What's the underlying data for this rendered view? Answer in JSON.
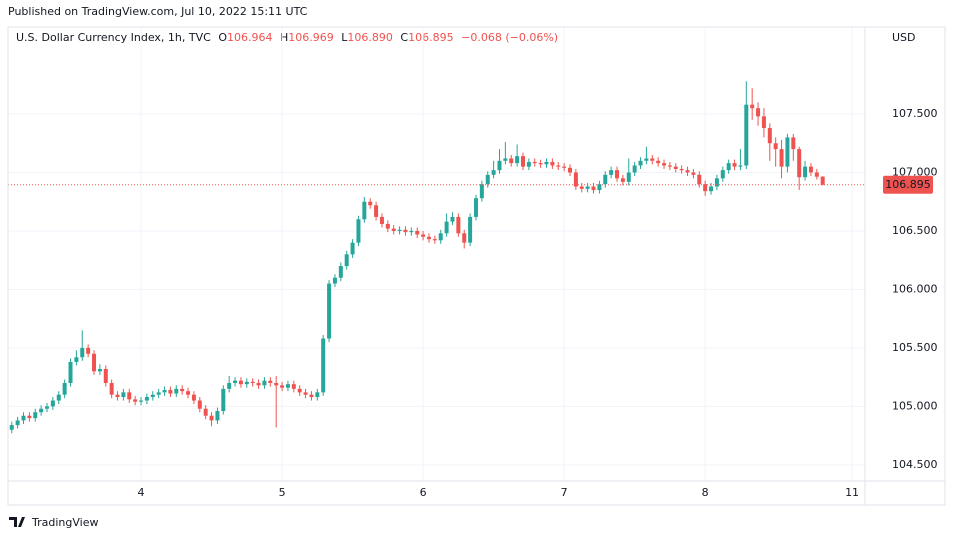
{
  "chart_data": {
    "type": "candlestick",
    "published": "Published on TradingView.com, Jul 10, 2022 15:11 UTC",
    "symbol": "U.S. Dollar Currency Index, 1h, TVC",
    "ohlc_letters": [
      "O",
      "H",
      "L",
      "C"
    ],
    "last_labels": [
      "106.964",
      "106.969",
      "106.890",
      "106.895"
    ],
    "change": "−0.068 (−0.06%)",
    "currency": "USD",
    "brand": "TradingView",
    "up_color": "#26a69a",
    "down_color": "#ef5350",
    "grid": true,
    "xlim": [
      -2,
      145.2
    ],
    "xticks": [
      {
        "value": 22,
        "label": "4"
      },
      {
        "value": 46,
        "label": "5"
      },
      {
        "value": 70,
        "label": "6"
      },
      {
        "value": 94,
        "label": "7"
      },
      {
        "value": 118,
        "label": "8"
      },
      {
        "value": 143,
        "label": "11"
      }
    ],
    "ylim": [
      104.362,
      108.244
    ],
    "yticks": [
      {
        "value": 104.5,
        "label": "104.500"
      },
      {
        "value": 105,
        "label": "105.000"
      },
      {
        "value": 105.5,
        "label": "105.500"
      },
      {
        "value": 106,
        "label": "106.000"
      },
      {
        "value": 106.5,
        "label": "106.500"
      },
      {
        "value": 107,
        "label": "107.000"
      },
      {
        "value": 107.5,
        "label": "107.500"
      }
    ],
    "open": [
      104.8,
      104.84,
      104.88,
      104.92,
      104.9,
      104.95,
      104.98,
      105.0,
      105.05,
      105.1,
      105.2,
      105.38,
      105.42,
      105.5,
      105.45,
      105.3,
      105.32,
      105.2,
      105.1,
      105.08,
      105.12,
      105.06,
      105.04,
      105.05,
      105.08,
      105.1,
      105.12,
      105.14,
      105.11,
      105.15,
      105.13,
      105.1,
      105.05,
      104.98,
      104.92,
      104.88,
      104.96,
      105.15,
      105.2,
      105.22,
      105.19,
      105.21,
      105.2,
      105.18,
      105.22,
      105.2,
      105.18,
      105.16,
      105.19,
      105.15,
      105.12,
      105.1,
      105.08,
      105.12,
      105.58,
      106.05,
      106.1,
      106.2,
      106.3,
      106.4,
      106.6,
      106.75,
      106.72,
      106.62,
      106.56,
      106.52,
      106.5,
      106.51,
      106.49,
      106.5,
      106.47,
      106.45,
      106.43,
      106.42,
      106.48,
      106.58,
      106.62,
      106.48,
      106.4,
      106.62,
      106.78,
      106.9,
      106.98,
      107.02,
      107.1,
      107.12,
      107.08,
      107.14,
      107.05,
      107.09,
      107.08,
      107.07,
      107.09,
      107.06,
      107.05,
      107.04,
      107.0,
      106.88,
      106.86,
      106.88,
      106.85,
      106.9,
      106.98,
      107.02,
      106.95,
      106.92,
      107.0,
      107.06,
      107.1,
      107.12,
      107.1,
      107.08,
      107.06,
      107.05,
      107.03,
      107.02,
      107.0,
      106.98,
      106.9,
      106.84,
      106.88,
      106.95,
      107.02,
      107.08,
      107.05,
      107.06,
      107.58,
      107.55,
      107.48,
      107.38,
      107.25,
      107.2,
      107.05,
      107.3,
      107.2,
      106.96,
      107.05,
      107.0,
      106.964
    ],
    "high": [
      104.87,
      104.91,
      104.95,
      104.95,
      104.98,
      105.01,
      105.03,
      105.08,
      105.13,
      105.23,
      105.41,
      105.48,
      105.65,
      105.53,
      105.48,
      105.36,
      105.35,
      105.23,
      105.13,
      105.15,
      105.15,
      105.09,
      105.08,
      105.11,
      105.13,
      105.15,
      105.17,
      105.17,
      105.18,
      105.18,
      105.16,
      105.13,
      105.08,
      105.01,
      104.95,
      104.99,
      105.18,
      105.26,
      105.25,
      105.25,
      105.24,
      105.24,
      105.23,
      105.25,
      105.25,
      105.26,
      105.21,
      105.22,
      105.22,
      105.18,
      105.15,
      105.13,
      105.15,
      105.61,
      106.08,
      106.13,
      106.23,
      106.33,
      106.43,
      106.63,
      106.79,
      106.78,
      106.75,
      106.65,
      106.59,
      106.55,
      106.54,
      106.54,
      106.53,
      106.53,
      106.5,
      106.48,
      106.46,
      106.51,
      106.65,
      106.66,
      106.65,
      106.51,
      106.65,
      106.81,
      106.93,
      107.01,
      107.1,
      107.2,
      107.26,
      107.15,
      107.24,
      107.17,
      107.12,
      107.12,
      107.11,
      107.12,
      107.12,
      107.09,
      107.08,
      107.07,
      107.03,
      106.91,
      106.91,
      106.91,
      106.93,
      107.01,
      107.05,
      107.05,
      106.98,
      107.12,
      107.09,
      107.13,
      107.22,
      107.15,
      107.13,
      107.11,
      107.09,
      107.08,
      107.06,
      107.05,
      107.03,
      107.01,
      106.93,
      106.91,
      106.98,
      107.05,
      107.11,
      107.11,
      107.2,
      107.78,
      107.72,
      107.6,
      107.55,
      107.42,
      107.3,
      107.28,
      107.33,
      107.33,
      107.22,
      107.1,
      107.08,
      107.03,
      106.969
    ],
    "low": [
      104.77,
      104.81,
      104.85,
      104.87,
      104.87,
      104.92,
      104.95,
      104.97,
      105.02,
      105.07,
      105.17,
      105.35,
      105.39,
      105.42,
      105.27,
      105.27,
      105.17,
      105.07,
      105.05,
      105.05,
      105.03,
      105.01,
      105.01,
      105.02,
      105.05,
      105.07,
      105.09,
      105.08,
      105.08,
      105.1,
      105.07,
      105.02,
      104.95,
      104.89,
      104.83,
      104.85,
      104.93,
      105.12,
      105.17,
      105.16,
      105.16,
      105.17,
      105.15,
      105.15,
      105.17,
      104.82,
      105.13,
      105.13,
      105.12,
      105.09,
      105.07,
      105.05,
      105.05,
      105.09,
      105.55,
      106.02,
      106.07,
      106.17,
      106.27,
      106.37,
      106.57,
      106.69,
      106.59,
      106.53,
      106.49,
      106.47,
      106.47,
      106.46,
      106.46,
      106.44,
      106.42,
      106.4,
      106.39,
      106.39,
      106.45,
      106.55,
      106.45,
      106.35,
      106.37,
      106.59,
      106.75,
      106.87,
      106.95,
      106.99,
      107.07,
      107.05,
      107.05,
      107.02,
      107.02,
      107.05,
      107.04,
      107.04,
      107.03,
      107.02,
      107.01,
      106.97,
      106.85,
      106.83,
      106.83,
      106.82,
      106.82,
      106.87,
      106.95,
      106.92,
      106.89,
      106.89,
      106.97,
      107.03,
      107.07,
      107.07,
      107.05,
      107.03,
      107.02,
      107.0,
      106.99,
      106.97,
      106.95,
      106.87,
      106.8,
      106.81,
      106.85,
      106.92,
      106.99,
      107.02,
      107.02,
      107.03,
      107.45,
      107.4,
      107.3,
      107.1,
      107.05,
      106.95,
      107.0,
      107.1,
      106.85,
      106.93,
      106.97,
      106.94,
      106.89
    ],
    "close": [
      104.84,
      104.88,
      104.92,
      104.9,
      104.95,
      104.98,
      105.0,
      105.05,
      105.1,
      105.2,
      105.38,
      105.42,
      105.5,
      105.45,
      105.3,
      105.32,
      105.2,
      105.1,
      105.08,
      105.12,
      105.06,
      105.04,
      105.05,
      105.08,
      105.1,
      105.12,
      105.14,
      105.11,
      105.15,
      105.13,
      105.1,
      105.05,
      104.98,
      104.92,
      104.88,
      104.96,
      105.15,
      105.2,
      105.22,
      105.19,
      105.21,
      105.2,
      105.18,
      105.22,
      105.2,
      105.18,
      105.16,
      105.19,
      105.15,
      105.12,
      105.1,
      105.08,
      105.12,
      105.58,
      106.05,
      106.1,
      106.2,
      106.3,
      106.4,
      106.6,
      106.75,
      106.72,
      106.62,
      106.56,
      106.52,
      106.5,
      106.51,
      106.49,
      106.5,
      106.47,
      106.45,
      106.43,
      106.42,
      106.48,
      106.58,
      106.62,
      106.48,
      106.4,
      106.62,
      106.78,
      106.9,
      106.98,
      107.02,
      107.1,
      107.12,
      107.08,
      107.14,
      107.05,
      107.09,
      107.08,
      107.07,
      107.09,
      107.06,
      107.05,
      107.04,
      107.0,
      106.88,
      106.86,
      106.88,
      106.85,
      106.9,
      106.98,
      107.02,
      106.95,
      106.92,
      107.0,
      107.06,
      107.1,
      107.12,
      107.1,
      107.08,
      107.06,
      107.05,
      107.03,
      107.02,
      107.0,
      106.98,
      106.9,
      106.84,
      106.88,
      106.95,
      107.02,
      107.08,
      107.05,
      107.06,
      107.58,
      107.55,
      107.48,
      107.38,
      107.25,
      107.2,
      107.05,
      107.3,
      107.2,
      106.96,
      107.05,
      107.0,
      106.964,
      106.895
    ]
  }
}
